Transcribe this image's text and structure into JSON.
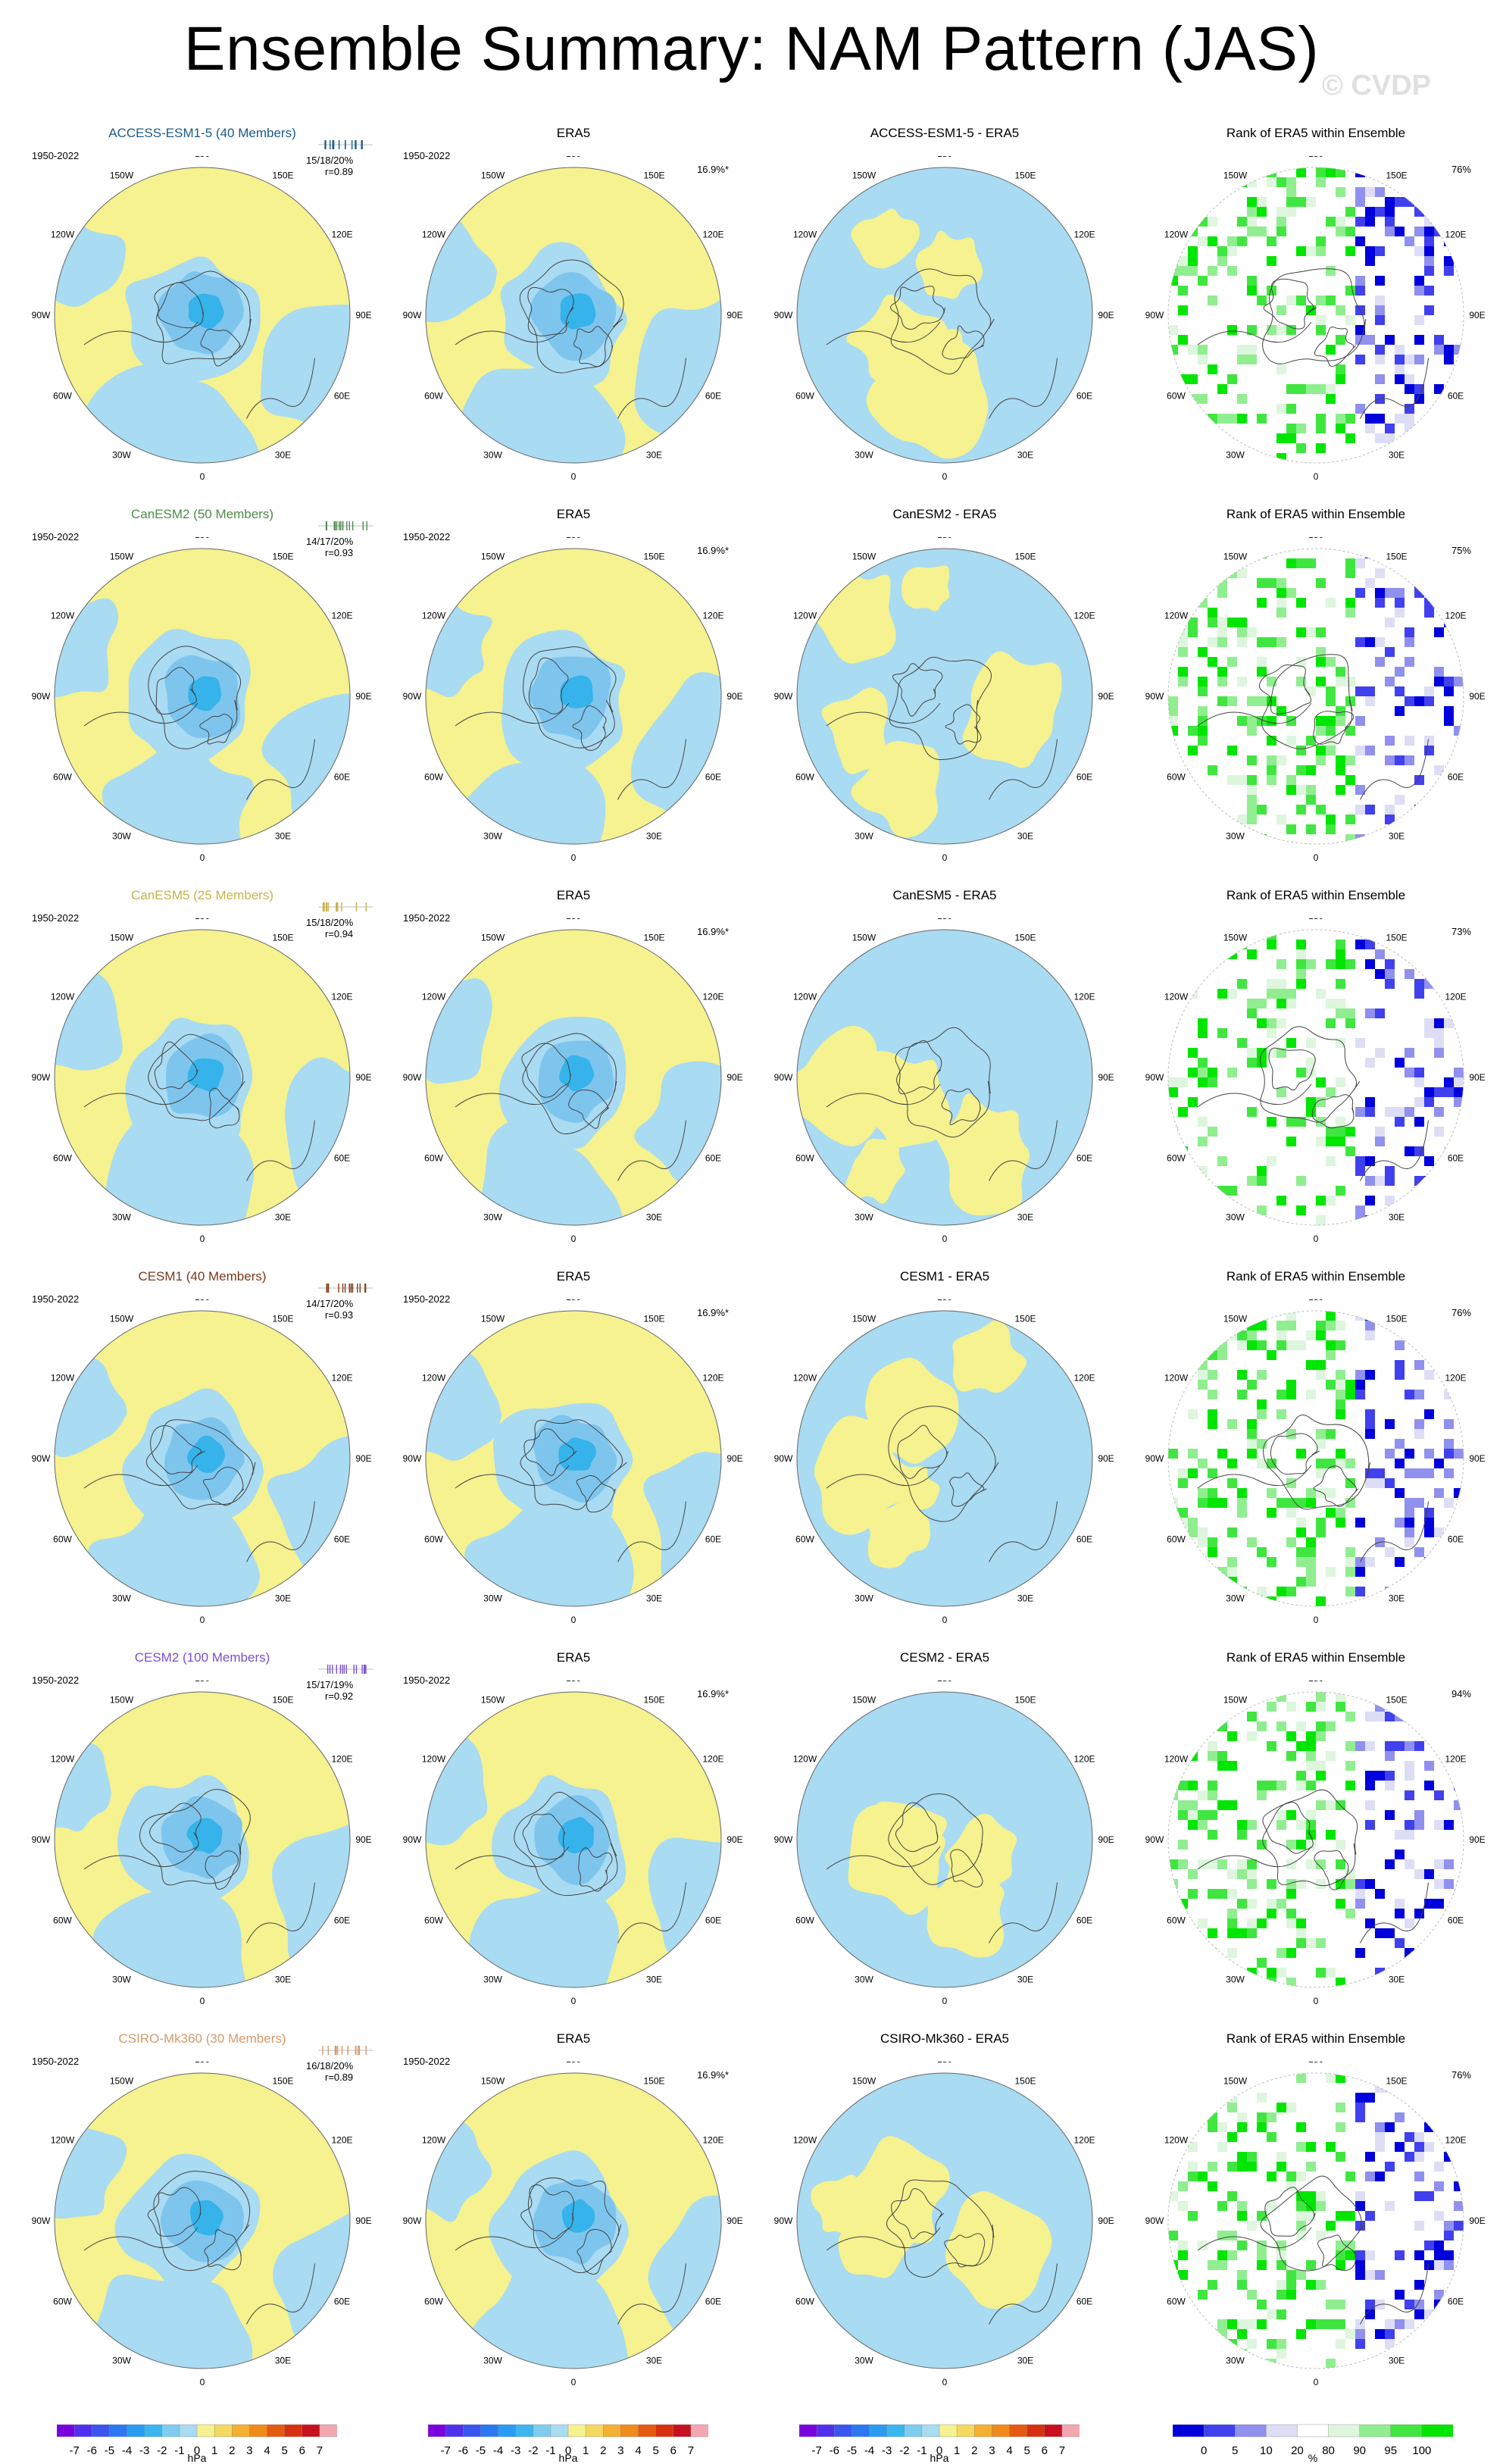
{
  "page": {
    "title": "Ensemble Summary: NAM Pattern (JAS)",
    "watermark": "© CVDP"
  },
  "common": {
    "period": "1950-2022",
    "obs_title": "ERA5",
    "obs_pct": "16.9%*",
    "rank_title": "Rank of ERA5 within Ensemble",
    "lon_labels": [
      "180",
      "150E",
      "120E",
      "90E",
      "60E",
      "30E",
      "0",
      "30W",
      "60W",
      "90W",
      "120W",
      "150W"
    ]
  },
  "colors": {
    "positive_fill": "#f5f28f",
    "negative_fill": "#a9dbf2",
    "neg2_fill": "#7ec5ee",
    "neg3_fill": "#35b3ea",
    "rank_high": "#00e600",
    "rank_low": "#0000dd"
  },
  "rows": [
    {
      "model": "ACCESS-ESM1-5 (40 Members)",
      "model_color": "#1b5a8a",
      "diff_title": "ACCESS-ESM1-5 - ERA5",
      "stats_line1": "15/18/20%",
      "stats_line2": "r=0.89",
      "rank_pct": "76%"
    },
    {
      "model": "CanESM2 (50 Members)",
      "model_color": "#4e8a4a",
      "diff_title": "CanESM2 - ERA5",
      "stats_line1": "14/17/20%",
      "stats_line2": "r=0.93",
      "rank_pct": "75%"
    },
    {
      "model": "CanESM5 (25 Members)",
      "model_color": "#c8b24a",
      "diff_title": "CanESM5 - ERA5",
      "stats_line1": "15/18/20%",
      "stats_line2": "r=0.94",
      "rank_pct": "73%"
    },
    {
      "model": "CESM1 (40 Members)",
      "model_color": "#7a3a1a",
      "diff_title": "CESM1 - ERA5",
      "stats_line1": "14/17/20%",
      "stats_line2": "r=0.93",
      "rank_pct": "76%"
    },
    {
      "model": "CESM2 (100 Members)",
      "model_color": "#7b4fd0",
      "diff_title": "CESM2 - ERA5",
      "stats_line1": "15/17/19%",
      "stats_line2": "r=0.92",
      "rank_pct": "94%"
    },
    {
      "model": "CSIRO-Mk360 (30 Members)",
      "model_color": "#d49a6a",
      "diff_title": "CSIRO-Mk360 - ERA5",
      "stats_line1": "16/18/20%",
      "stats_line2": "r=0.89",
      "rank_pct": "76%"
    }
  ],
  "colorbars": {
    "hpa": {
      "labels": [
        "-7",
        "-6",
        "-5",
        "-4",
        "-3",
        "-2",
        "-1",
        "0",
        "1",
        "2",
        "3",
        "4",
        "5",
        "6",
        "7"
      ],
      "colors": [
        "#7a00e0",
        "#5030ee",
        "#3a55f0",
        "#2c78f2",
        "#2a9cf2",
        "#3ab6ee",
        "#7ecdf0",
        "#a9dbf2",
        "#f5f28f",
        "#f4d860",
        "#f4b030",
        "#f08a1a",
        "#e65a10",
        "#d83010",
        "#c81020",
        "#f2a6b0"
      ],
      "unit": "hPa"
    },
    "rank": {
      "labels": [
        "0",
        "5",
        "10",
        "20",
        "80",
        "90",
        "95",
        "100"
      ],
      "colors": [
        "#0000dd",
        "#4040ee",
        "#9090ee",
        "#ddddf6",
        "#ffffff",
        "#ddf6dd",
        "#90ee90",
        "#40e640",
        "#00e600"
      ],
      "unit": "%"
    }
  },
  "chart_data": {
    "type": "heatmap",
    "title": "Ensemble Summary: NAM Pattern (JAS)",
    "description_units": "hPa (pattern/difference maps), % (rank maps)",
    "rows": [
      {
        "model": "ACCESS-ESM1-5",
        "members": 40,
        "pct_var_min_mean_max": [
          15,
          18,
          20
        ],
        "pattern_corr": 0.89,
        "rank_pct_area": 76
      },
      {
        "model": "CanESM2",
        "members": 50,
        "pct_var_min_mean_max": [
          14,
          17,
          20
        ],
        "pattern_corr": 0.93,
        "rank_pct_area": 75
      },
      {
        "model": "CanESM5",
        "members": 25,
        "pct_var_min_mean_max": [
          15,
          18,
          20
        ],
        "pattern_corr": 0.94,
        "rank_pct_area": 73
      },
      {
        "model": "CESM1",
        "members": 40,
        "pct_var_min_mean_max": [
          14,
          17,
          20
        ],
        "pattern_corr": 0.93,
        "rank_pct_area": 76
      },
      {
        "model": "CESM2",
        "members": 100,
        "pct_var_min_mean_max": [
          15,
          17,
          19
        ],
        "pattern_corr": 0.92,
        "rank_pct_area": 94
      },
      {
        "model": "CSIRO-Mk360",
        "members": 30,
        "pct_var_min_mean_max": [
          16,
          18,
          20
        ],
        "pattern_corr": 0.89,
        "rank_pct_area": 76
      }
    ],
    "observation": {
      "name": "ERA5",
      "pct_var": 16.9,
      "significant": true
    },
    "colorbar_hpa": [
      -7,
      -6,
      -5,
      -4,
      -3,
      -2,
      -1,
      0,
      1,
      2,
      3,
      4,
      5,
      6,
      7
    ],
    "colorbar_rank": [
      0,
      5,
      10,
      20,
      80,
      90,
      95,
      100
    ]
  }
}
